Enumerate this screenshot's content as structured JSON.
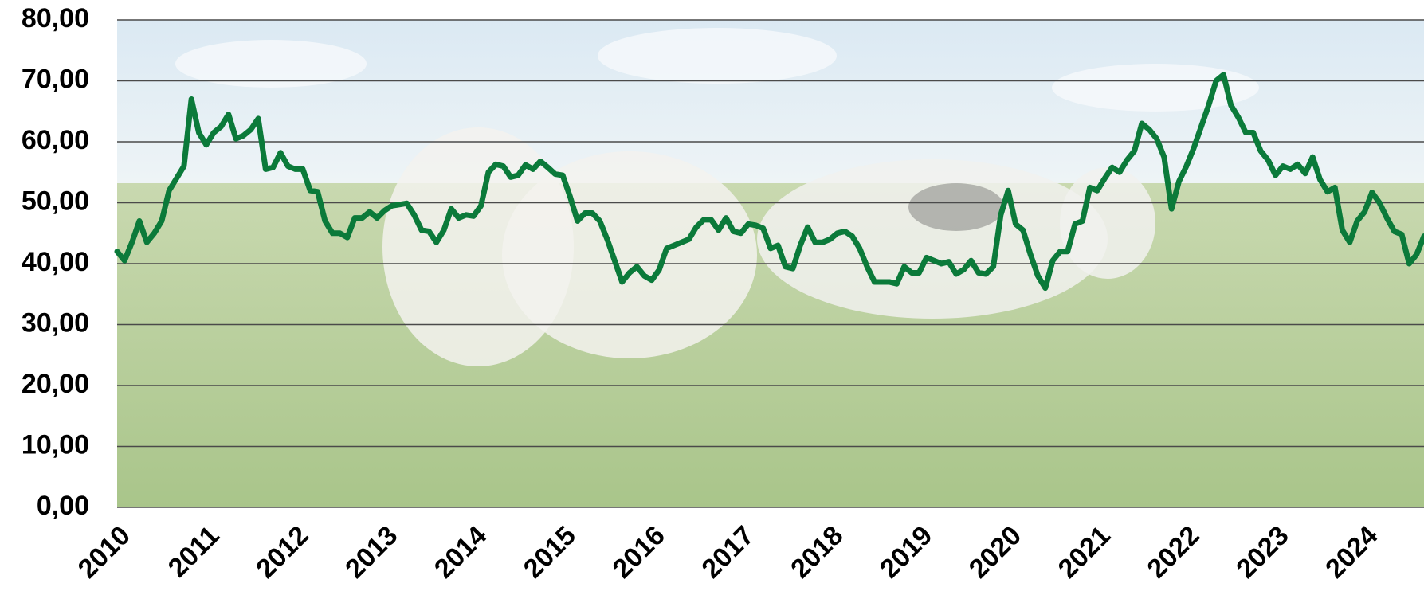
{
  "chart_data": {
    "type": "line",
    "categories": [
      "2010",
      null,
      null,
      null,
      null,
      null,
      null,
      null,
      null,
      null,
      null,
      null,
      "2011",
      null,
      null,
      null,
      null,
      null,
      null,
      null,
      null,
      null,
      null,
      null,
      "2012",
      null,
      null,
      null,
      null,
      null,
      null,
      null,
      null,
      null,
      null,
      null,
      "2013",
      null,
      null,
      null,
      null,
      null,
      null,
      null,
      null,
      null,
      null,
      null,
      "2014",
      null,
      null,
      null,
      null,
      null,
      null,
      null,
      null,
      null,
      null,
      null,
      "2015",
      null,
      null,
      null,
      null,
      null,
      null,
      null,
      null,
      null,
      null,
      null,
      "2016",
      null,
      null,
      null,
      null,
      null,
      null,
      null,
      null,
      null,
      null,
      null,
      "2017",
      null,
      null,
      null,
      null,
      null,
      null,
      null,
      null,
      null,
      null,
      null,
      "2018",
      null,
      null,
      null,
      null,
      null,
      null,
      null,
      null,
      null,
      null,
      null,
      "2019",
      null,
      null,
      null,
      null,
      null,
      null,
      null,
      null,
      null,
      null,
      null,
      "2020",
      null,
      null,
      null,
      null,
      null,
      null,
      null,
      null,
      null,
      null,
      null,
      "2021",
      null,
      null,
      null,
      null,
      null,
      null,
      null,
      null,
      null,
      null,
      null,
      "2022",
      null,
      null,
      null,
      null,
      null,
      null,
      null,
      null,
      null,
      null,
      null,
      "2023",
      null,
      null,
      null,
      null,
      null,
      null,
      null,
      null,
      null,
      null,
      null,
      "2024",
      null,
      null,
      null,
      null,
      null,
      null,
      null,
      null
    ],
    "values": [
      42,
      40.5,
      43.5,
      47,
      43.5,
      45,
      47,
      52,
      54,
      56,
      67,
      61.5,
      59.5,
      61.5,
      62.5,
      64.5,
      60.5,
      61,
      62,
      63.8,
      55.5,
      55.8,
      58.2,
      56,
      55.5,
      55.5,
      52,
      51.8,
      47,
      45,
      45,
      44.3,
      47.5,
      47.5,
      48.5,
      47.5,
      48.7,
      49.5,
      49.7,
      49.9,
      48,
      45.5,
      45.3,
      43.5,
      45.5,
      49,
      47.5,
      48,
      47.8,
      49.5,
      55,
      56.3,
      56,
      54.2,
      54.5,
      56.2,
      55.5,
      56.8,
      55.8,
      54.7,
      54.5,
      51,
      47,
      48.3,
      48.3,
      47,
      44,
      40.5,
      37,
      38.5,
      39.5,
      38,
      37.3,
      39,
      42.5,
      43,
      43.5,
      44,
      46,
      47.2,
      47.2,
      45.5,
      47.5,
      45.3,
      45,
      46.5,
      46.3,
      45.8,
      42.5,
      43,
      39.5,
      39.2,
      43,
      46,
      43.5,
      43.5,
      44,
      45,
      45.3,
      44.5,
      42.5,
      39.5,
      37,
      37,
      37,
      36.7,
      39.5,
      38.5,
      38.5,
      41,
      40.5,
      40,
      40.3,
      38.3,
      39,
      40.5,
      38.5,
      38.3,
      39.5,
      48,
      52,
      46.5,
      45.5,
      41.5,
      38,
      36,
      40.5,
      42,
      42,
      46.5,
      47,
      52.5,
      52,
      54,
      55.8,
      55,
      57,
      58.5,
      63,
      62,
      60.5,
      57.5,
      49,
      53.5,
      56,
      59,
      62.5,
      66,
      70,
      71,
      66,
      64,
      61.5,
      61.5,
      58.5,
      57,
      54.5,
      56,
      55.5,
      56.3,
      54.8,
      57.5,
      53.8,
      51.8,
      52.5,
      45.5,
      43.5,
      47,
      48.5,
      51.7,
      50,
      47.5,
      45.3,
      44.8,
      40,
      41.5,
      44.5
    ],
    "color": "#0b7a3a",
    "ylim": [
      0,
      80
    ],
    "yticks": [
      {
        "value": 0,
        "label": "0,00"
      },
      {
        "value": 10,
        "label": "10,00"
      },
      {
        "value": 20,
        "label": "20,00"
      },
      {
        "value": 30,
        "label": "30,00"
      },
      {
        "value": 40,
        "label": "40,00"
      },
      {
        "value": 50,
        "label": "50,00"
      },
      {
        "value": 60,
        "label": "60,00"
      },
      {
        "value": 70,
        "label": "70,00"
      },
      {
        "value": 80,
        "label": "80,00"
      }
    ],
    "grid": true
  }
}
